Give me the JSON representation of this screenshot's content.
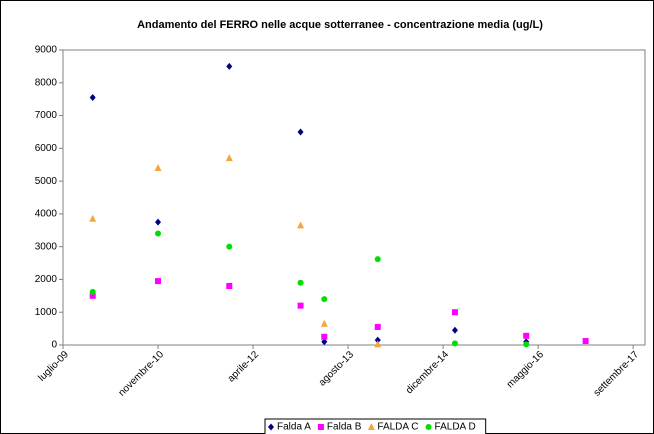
{
  "chart_data": {
    "type": "scatter",
    "title": "Andamento del FERRO nelle acque sotterranee - concentrazione media (ug/L)",
    "x": [
      "2009-12",
      "2010-11",
      "2011-11",
      "2012-11",
      "2013-03",
      "2013-12",
      "2015-01",
      "2016-01",
      "2016-11"
    ],
    "series": [
      {
        "name": "Falda A",
        "color": "#000080",
        "marker": "diamond",
        "values": [
          7550,
          3750,
          8500,
          6500,
          100,
          150,
          450,
          100,
          null
        ]
      },
      {
        "name": "Falda B",
        "color": "#ff00ff",
        "marker": "square",
        "values": [
          1500,
          1950,
          1800,
          1200,
          250,
          550,
          1000,
          280,
          120
        ]
      },
      {
        "name": "FALDA C",
        "color": "#f5a53c",
        "marker": "triangle",
        "values": [
          3850,
          5400,
          5700,
          3650,
          650,
          20,
          null,
          null,
          null
        ]
      },
      {
        "name": "FALDA D",
        "color": "#00e000",
        "marker": "circle",
        "values": [
          1620,
          3400,
          3000,
          1900,
          1400,
          2620,
          50,
          20,
          null
        ]
      }
    ],
    "xlim": [
      "2009-07",
      "2017-09"
    ],
    "xticks": [
      {
        "value": "2009-07",
        "label": "luglio-09"
      },
      {
        "value": "2010-11",
        "label": "novembre-10"
      },
      {
        "value": "2012-03",
        "label": "aprile-12"
      },
      {
        "value": "2013-07",
        "label": "agosto-13"
      },
      {
        "value": "2014-11",
        "label": "dicembre-14"
      },
      {
        "value": "2016-03",
        "label": "maggio-16"
      },
      {
        "value": "2017-07",
        "label": "settembre-17"
      }
    ],
    "ylim": [
      0,
      9000
    ],
    "yticks": [
      0,
      1000,
      2000,
      3000,
      4000,
      5000,
      6000,
      7000,
      8000,
      9000
    ],
    "grid": false,
    "legend": "bottom"
  }
}
